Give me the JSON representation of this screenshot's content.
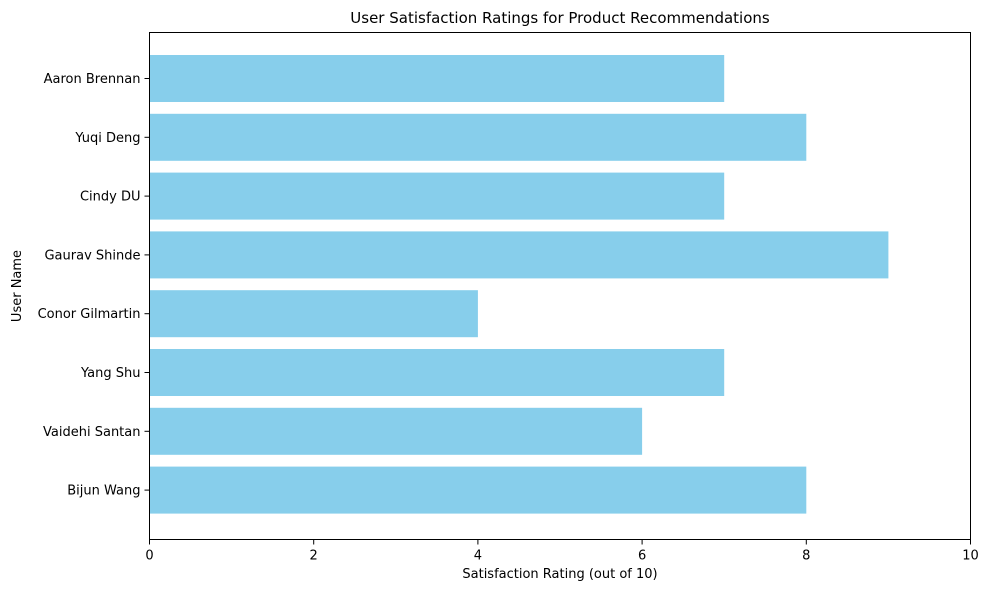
{
  "chart_data": {
    "type": "bar",
    "orientation": "horizontal",
    "title": "User Satisfaction Ratings for Product Recommendations",
    "xlabel": "Satisfaction Rating (out of 10)",
    "ylabel": "User Name",
    "xlim": [
      0,
      10
    ],
    "xticks": [
      "0",
      "2",
      "4",
      "6",
      "8",
      "10"
    ],
    "categories": [
      "Aaron Brennan",
      "Yuqi Deng",
      "Cindy DU",
      "Gaurav Shinde",
      "Conor Gilmartin",
      "Yang Shu",
      "Vaidehi Santan",
      "Bijun Wang"
    ],
    "values": [
      7,
      8,
      7,
      9,
      4,
      7,
      6,
      8
    ],
    "bar_color": "#87ceeb",
    "grid": false,
    "legend": "none"
  }
}
